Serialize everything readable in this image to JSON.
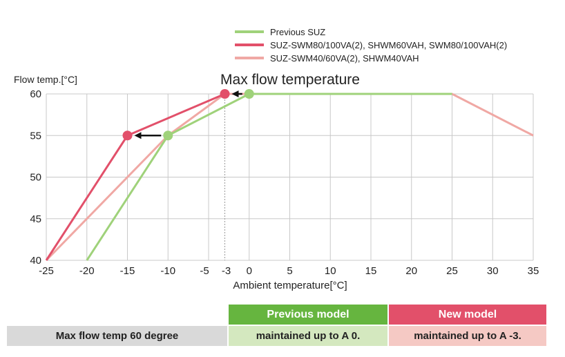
{
  "chart_data": {
    "type": "line",
    "title": "Max flow temperature",
    "xlabel": "Ambient temperature[°C]",
    "ylabel": "Flow temp.[°C]",
    "xlim": [
      -25,
      35
    ],
    "ylim": [
      40,
      60
    ],
    "x_ticks": [
      -25,
      -20,
      -15,
      -10,
      -5,
      -3,
      0,
      5,
      10,
      15,
      20,
      25,
      30,
      35
    ],
    "y_ticks": [
      40,
      45,
      50,
      55,
      60
    ],
    "grid": true,
    "legend_position": "top-right",
    "series": [
      {
        "name": "SUZ-SWM40/60VA(2), SHWM40VAH",
        "color": "#f0a8a4",
        "x": [
          -25,
          -10,
          -3,
          25,
          35
        ],
        "y": [
          40,
          55,
          60,
          60,
          55
        ]
      },
      {
        "name": "Previous SUZ",
        "color": "#9fd27a",
        "x": [
          -20,
          -10,
          0,
          25
        ],
        "y": [
          40,
          55,
          60,
          60
        ]
      },
      {
        "name": "SUZ-SWM80/100VA(2), SHWM60VAH, SWM80/100VAH(2)",
        "color": "#e2506a",
        "x": [
          -25,
          -15,
          -3
        ],
        "y": [
          40,
          55,
          60
        ]
      }
    ],
    "markers": [
      {
        "x": -10,
        "y": 55,
        "color": "#9fd27a"
      },
      {
        "x": 0,
        "y": 60,
        "color": "#9fd27a"
      },
      {
        "x": -15,
        "y": 55,
        "color": "#e2506a"
      },
      {
        "x": -3,
        "y": 60,
        "color": "#e2506a"
      }
    ],
    "arrows": [
      {
        "from": [
          -10,
          55
        ],
        "to": [
          -15,
          55
        ]
      },
      {
        "from": [
          0,
          60
        ],
        "to": [
          -3,
          60
        ]
      }
    ],
    "reference_line_x": -3
  },
  "legend": [
    {
      "label": "Previous SUZ",
      "color": "#9fd27a"
    },
    {
      "label": "SUZ-SWM80/100VA(2), SHWM60VAH, SWM80/100VAH(2)",
      "color": "#e2506a"
    },
    {
      "label": "SUZ-SWM40/60VA(2), SHWM40VAH",
      "color": "#f0a8a4"
    }
  ],
  "table": {
    "header_previous": "Previous model",
    "header_new": "New model",
    "row_label": "Max flow temp 60 degree",
    "previous_value": "maintained up to A 0.",
    "new_value": "maintained up to A -3.",
    "colors": {
      "header_previous_bg": "#66b53f",
      "header_new_bg": "#e2506a",
      "row_label_bg": "#d9d9d9",
      "previous_value_bg": "#d4e8bf",
      "new_value_bg": "#f5c9c4"
    }
  }
}
